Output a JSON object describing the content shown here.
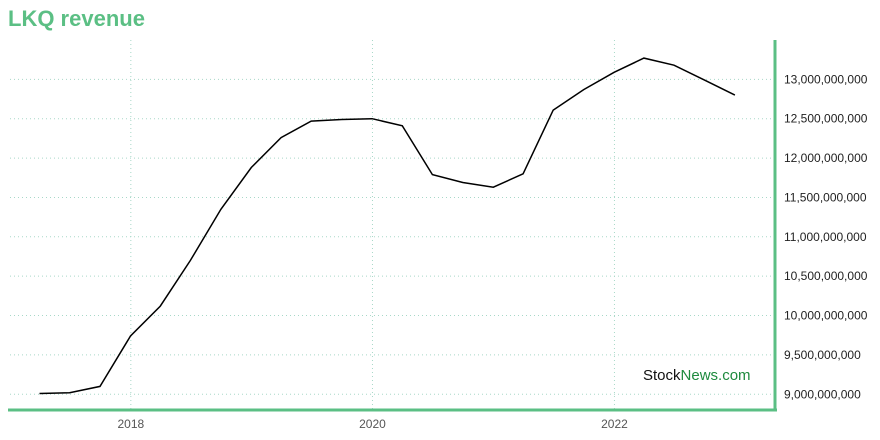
{
  "title": "LKQ revenue",
  "watermark": {
    "part1": "Stock",
    "part2": "News",
    "part3": ".com"
  },
  "colors": {
    "accent": "#5bbf84",
    "axis": "#5bbf84",
    "grid": "#a8d8c8",
    "line": "#000000",
    "watermark_dark": "#111111",
    "watermark_accent": "#1e8a3e"
  },
  "chart_data": {
    "type": "line",
    "title": "LKQ revenue",
    "xlabel": "",
    "ylabel": "",
    "x_ticks": [
      "2018",
      "2020",
      "2022"
    ],
    "y_ticks": [
      "9,000,000,000",
      "9,500,000,000",
      "10,000,000,000",
      "10,500,000,000",
      "11,000,000,000",
      "11,500,000,000",
      "12,000,000,000",
      "12,500,000,000",
      "13,000,000,000"
    ],
    "ylim": [
      8800000000,
      13500000000
    ],
    "xlim": [
      "2017-01-01",
      "2023-05-01"
    ],
    "grid": true,
    "series": [
      {
        "points": [
          [
            "2017-03-31",
            9010000000
          ],
          [
            "2017-06-30",
            9020000000
          ],
          [
            "2017-09-30",
            9100000000
          ],
          [
            "2017-12-31",
            9740000000
          ],
          [
            "2018-03-31",
            10120000000
          ],
          [
            "2018-06-30",
            10700000000
          ],
          [
            "2018-09-30",
            11350000000
          ],
          [
            "2018-12-31",
            11880000000
          ],
          [
            "2019-03-31",
            12260000000
          ],
          [
            "2019-06-30",
            12470000000
          ],
          [
            "2019-09-30",
            12490000000
          ],
          [
            "2019-12-31",
            12500000000
          ],
          [
            "2020-03-31",
            12410000000
          ],
          [
            "2020-06-30",
            11790000000
          ],
          [
            "2020-09-30",
            11690000000
          ],
          [
            "2020-12-31",
            11630000000
          ],
          [
            "2021-03-31",
            11800000000
          ],
          [
            "2021-06-30",
            12610000000
          ],
          [
            "2021-09-30",
            12870000000
          ],
          [
            "2021-12-31",
            13090000000
          ],
          [
            "2022-03-31",
            13270000000
          ],
          [
            "2022-06-30",
            13180000000
          ],
          [
            "2022-09-30",
            12990000000
          ],
          [
            "2022-12-31",
            12800000000
          ]
        ]
      }
    ]
  }
}
